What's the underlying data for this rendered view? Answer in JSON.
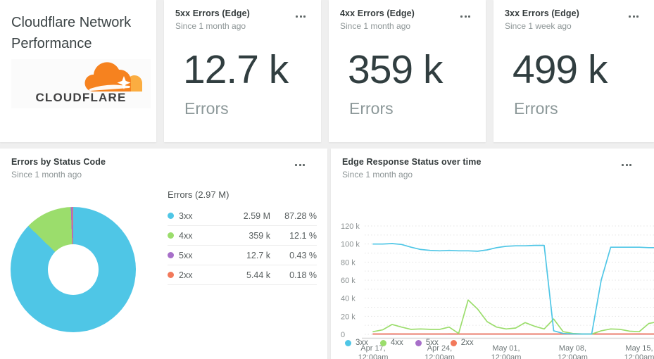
{
  "page": {
    "background": "#efefef",
    "card_background": "#ffffff"
  },
  "title_card": {
    "title": "Cloudflare Network Performance",
    "logo_text": "CLOUDFLARE",
    "logo_orange": "#F6821F",
    "logo_light_orange": "#FBAD41"
  },
  "kpis": [
    {
      "title": "5xx Errors (Edge)",
      "subtitle": "Since 1 month ago",
      "value": "12.7 k",
      "unit": "Errors"
    },
    {
      "title": "4xx Errors (Edge)",
      "subtitle": "Since 1 month ago",
      "value": "359 k",
      "unit": "Errors"
    },
    {
      "title": "3xx Errors (Edge)",
      "subtitle": "Since 1 week ago",
      "value": "499 k",
      "unit": "Errors"
    }
  ],
  "donut_card": {
    "title": "Errors by Status Code",
    "subtitle": "Since 1 month ago"
  },
  "ts_card": {
    "title": "Edge Response Status over time",
    "subtitle": "Since 1 month ago"
  },
  "chart_data": [
    {
      "type": "pie",
      "donut": true,
      "title": "Errors by Status Code",
      "total_label": "Errors (2.97 M)",
      "legend_position": "right",
      "segments": [
        {
          "label": "3xx",
          "value_label": "2.59 M",
          "percent": 87.28,
          "percent_label": "87.28 %",
          "color": "#4FC6E6"
        },
        {
          "label": "4xx",
          "value_label": "359 k",
          "percent": 12.1,
          "percent_label": "12.1 %",
          "color": "#9BDD6C"
        },
        {
          "label": "5xx",
          "value_label": "12.7 k",
          "percent": 0.43,
          "percent_label": "0.43 %",
          "color": "#A76FC9"
        },
        {
          "label": "2xx",
          "value_label": "5.44 k",
          "percent": 0.18,
          "percent_label": "0.18 %",
          "color": "#F2795B"
        }
      ]
    },
    {
      "type": "line",
      "title": "Edge Response Status over time",
      "unit": "thousands",
      "ylim": [
        0,
        120000
      ],
      "grid": "dotted",
      "legend_position": "bottom",
      "y_ticks": [
        "0",
        "20 k",
        "40 k",
        "60 k",
        "80 k",
        "100 k",
        "120 k"
      ],
      "x_ticks": [
        {
          "l1": "Apr 17,",
          "l2": "12:00am"
        },
        {
          "l1": "Apr 24,",
          "l2": "12:00am"
        },
        {
          "l1": "May 01,",
          "l2": "12:00am"
        },
        {
          "l1": "May 08,",
          "l2": "12:00am"
        },
        {
          "l1": "May 15,",
          "l2": "12:00am"
        }
      ],
      "series": [
        {
          "name": "3xx",
          "color": "#4FC6E6",
          "values": [
            100,
            100,
            100.5,
            99.5,
            96.5,
            94,
            93,
            92.5,
            93,
            92.5,
            92.5,
            92,
            93.5,
            96,
            97.5,
            98,
            98,
            98.5,
            98.5,
            4,
            1,
            0.5,
            0.4,
            0.4,
            60,
            96.5,
            96.5,
            96.5,
            96.5,
            96,
            96
          ]
        },
        {
          "name": "4xx",
          "color": "#9BDD6C",
          "values": [
            3,
            5,
            11,
            8,
            5.5,
            6,
            5.5,
            5.5,
            8,
            1,
            38,
            28,
            14,
            8,
            6,
            7,
            13,
            9,
            6,
            17,
            3,
            1,
            0.5,
            0.3,
            4,
            6,
            5.5,
            3.5,
            3,
            12,
            14
          ]
        },
        {
          "name": "5xx",
          "color": "#A76FC9",
          "values": [
            0.3,
            0.3,
            0.3,
            0.3,
            0.3,
            0.3,
            0.3,
            0.3,
            0.3,
            0.3,
            0.3,
            0.3,
            0.3,
            0.3,
            0.3,
            0.3,
            0.3,
            0.3,
            0.3,
            0.3,
            0.3,
            0.3,
            0.3,
            0.3,
            0.3,
            0.3,
            0.3,
            0.3,
            0.3,
            0.3,
            0.3
          ]
        },
        {
          "name": "2xx",
          "color": "#F2795B",
          "values": [
            0.4,
            0.4,
            0.5,
            0.4,
            0.4,
            0.4,
            0.4,
            0.4,
            0.5,
            0.4,
            0.4,
            0.4,
            0.4,
            0.4,
            0.4,
            0.4,
            0.4,
            0.4,
            0.4,
            0.4,
            0.4,
            0.4,
            0.4,
            0.4,
            0.4,
            0.4,
            0.4,
            0.4,
            0.5,
            0.4,
            0.4
          ]
        }
      ]
    }
  ]
}
